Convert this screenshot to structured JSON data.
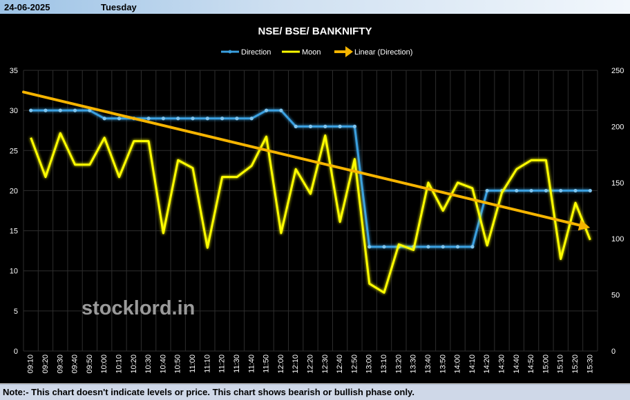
{
  "header": {
    "date": "24-06-2025",
    "day": "Tuesday"
  },
  "footer": {
    "note": "Note:- This chart doesn't indicate levels or price. This chart shows bearish or bullish phase only."
  },
  "watermark": "stocklord.in",
  "colors": {
    "direction": "#3aa0e0",
    "moon": "#ffff00",
    "trend": "#f5b400",
    "grid": "#2e2e2e",
    "axis_text": "#ffffff"
  },
  "chart_data": {
    "type": "line",
    "title": "NSE/ BSE/ BANKNIFTY",
    "legend": [
      "Direction",
      "Moon",
      "Linear (Direction)"
    ],
    "legend_position": "top-center",
    "grid": true,
    "x": [
      "09:10",
      "09:20",
      "09:30",
      "09:40",
      "09:50",
      "10:00",
      "10:10",
      "10:20",
      "10:30",
      "10:40",
      "10:50",
      "11:00",
      "11:10",
      "11:20",
      "11:30",
      "11:40",
      "11:50",
      "12:00",
      "12:10",
      "12:20",
      "12:30",
      "12:40",
      "12:50",
      "13:00",
      "13:10",
      "13:20",
      "13:30",
      "13:40",
      "13:50",
      "14:00",
      "14:10",
      "14:20",
      "14:30",
      "14:40",
      "14:50",
      "15:00",
      "15:10",
      "15:20",
      "15:30"
    ],
    "left_axis": {
      "min": 0,
      "max": 35,
      "step": 5,
      "ticks": [
        "0",
        "5",
        "10",
        "15",
        "20",
        "25",
        "30",
        "35"
      ]
    },
    "right_axis": {
      "min": 0,
      "max": 250,
      "step": 50,
      "ticks": [
        "0",
        "50",
        "100",
        "150",
        "200",
        "250"
      ]
    },
    "series": [
      {
        "name": "Direction",
        "axis": "left",
        "values": [
          30,
          30,
          30,
          30,
          30,
          29,
          29,
          29,
          29,
          29,
          29,
          29,
          29,
          29,
          29,
          29,
          30,
          30,
          28,
          28,
          28,
          28,
          28,
          13,
          13,
          13,
          13,
          13,
          13,
          13,
          13,
          20,
          20,
          20,
          20,
          20,
          20,
          20,
          20
        ]
      },
      {
        "name": "Moon",
        "axis": "right",
        "values": [
          190,
          155,
          194,
          166,
          166,
          190,
          155,
          187,
          187,
          105,
          170,
          163,
          92,
          155,
          155,
          165,
          191,
          105,
          162,
          140,
          192,
          115,
          171,
          60,
          52,
          95,
          90,
          150,
          125,
          150,
          145,
          94,
          141,
          162,
          170,
          170,
          82,
          132,
          99
        ]
      },
      {
        "name": "Linear (Direction)",
        "axis": "left",
        "type": "linear-trend",
        "start": 32.3,
        "end": 15.5
      }
    ]
  }
}
